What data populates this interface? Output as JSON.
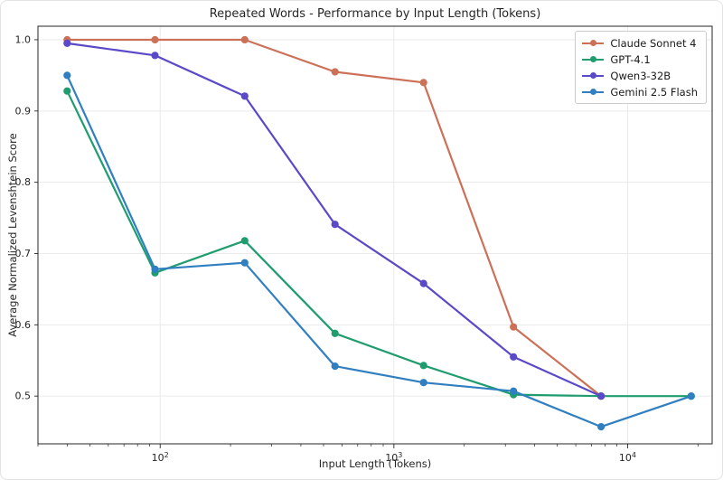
{
  "figure": {
    "title": "Repeated Words - Performance by Input Length (Tokens)",
    "xlabel": "Input Length (Tokens)",
    "ylabel": "Average Normalized Levenshtein Score"
  },
  "chart_data": {
    "type": "line",
    "title": "Repeated Words - Performance by Input Length (Tokens)",
    "xlabel": "Input Length (Tokens)",
    "ylabel": "Average Normalized Levenshtein Score",
    "x_scale": "log",
    "x": [
      40,
      95,
      230,
      560,
      1340,
      3250,
      7700,
      18700
    ],
    "series": [
      {
        "name": "Claude Sonnet 4",
        "color": "#cd7058",
        "values": [
          1.0,
          1.0,
          1.0,
          0.955,
          0.94,
          0.597,
          0.5,
          null
        ]
      },
      {
        "name": "GPT-4.1",
        "color": "#1f9d6e",
        "values": [
          0.928,
          0.673,
          0.718,
          0.588,
          0.543,
          0.502,
          0.5,
          0.5
        ]
      },
      {
        "name": "Qwen3-32B",
        "color": "#5a49c8",
        "values": [
          0.995,
          0.978,
          0.921,
          0.741,
          0.658,
          0.555,
          0.5,
          null
        ]
      },
      {
        "name": "Gemini 2.5 Flash",
        "color": "#2f7fc1",
        "values": [
          0.95,
          0.678,
          0.687,
          0.542,
          0.519,
          0.507,
          0.457,
          0.5
        ]
      }
    ],
    "xlim": [
      30,
      23000
    ],
    "ylim": [
      0.433,
      1.019
    ],
    "y_ticks": [
      0.5,
      0.6,
      0.7,
      0.8,
      0.9,
      1.0
    ],
    "x_major_ticks": [
      100,
      1000,
      10000
    ],
    "grid": true,
    "legend_position": "upper right"
  },
  "style": {
    "grid_color": "#eaeaea",
    "spine_color": "#262626",
    "tick_color": "#262626",
    "line_width": 2.2,
    "marker_radius": 3.6
  }
}
